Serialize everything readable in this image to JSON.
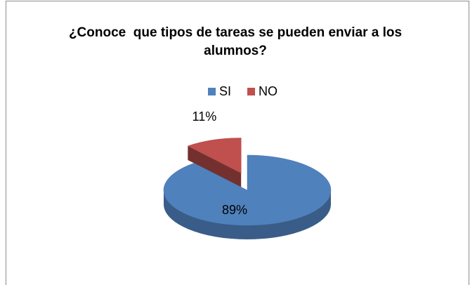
{
  "chart_data": {
    "type": "pie",
    "title": "¿Conoce  que tipos de tareas se pueden enviar a los alumnos?",
    "categories": [
      "SI",
      "NO"
    ],
    "values": [
      89,
      11
    ],
    "value_labels": [
      "89%",
      "11%"
    ],
    "colors": [
      "#4f81bd",
      "#c0504d"
    ],
    "legend": "top",
    "three_d": true
  }
}
